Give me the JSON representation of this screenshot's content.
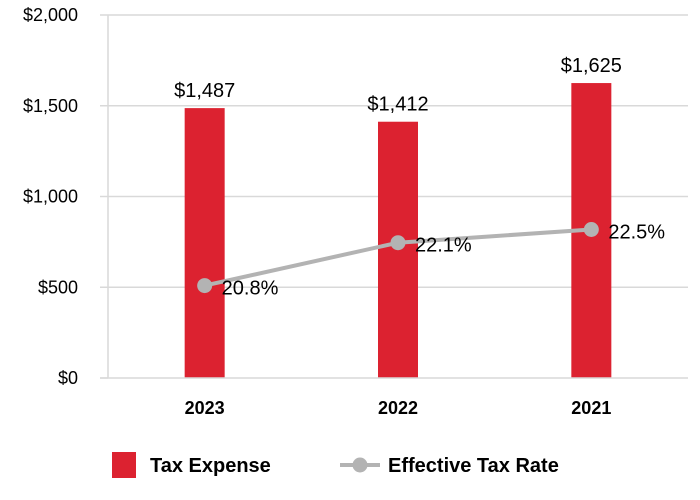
{
  "chart_data": {
    "type": "bar",
    "categories": [
      "2023",
      "2022",
      "2021"
    ],
    "series": [
      {
        "name": "Tax Expense",
        "type": "bar",
        "values": [
          1487,
          1412,
          1625
        ],
        "labels": [
          "$1,487",
          "$1,412",
          "$1,625"
        ],
        "color": "#dc2230"
      },
      {
        "name": "Effective Tax Rate",
        "type": "line",
        "values": [
          20.8,
          22.1,
          22.5
        ],
        "labels": [
          "20.8%",
          "22.1%",
          "22.5%"
        ],
        "color": "#b3b3b3"
      }
    ],
    "ylim": [
      0,
      2000
    ],
    "yticks": [
      0,
      500,
      1000,
      1500,
      2000
    ],
    "ytick_labels": [
      "$0",
      "$500",
      "$1,000",
      "$1,500",
      "$2,000"
    ],
    "grid": true,
    "legend_position": "bottom",
    "grid_color": "#d9d9d9"
  }
}
